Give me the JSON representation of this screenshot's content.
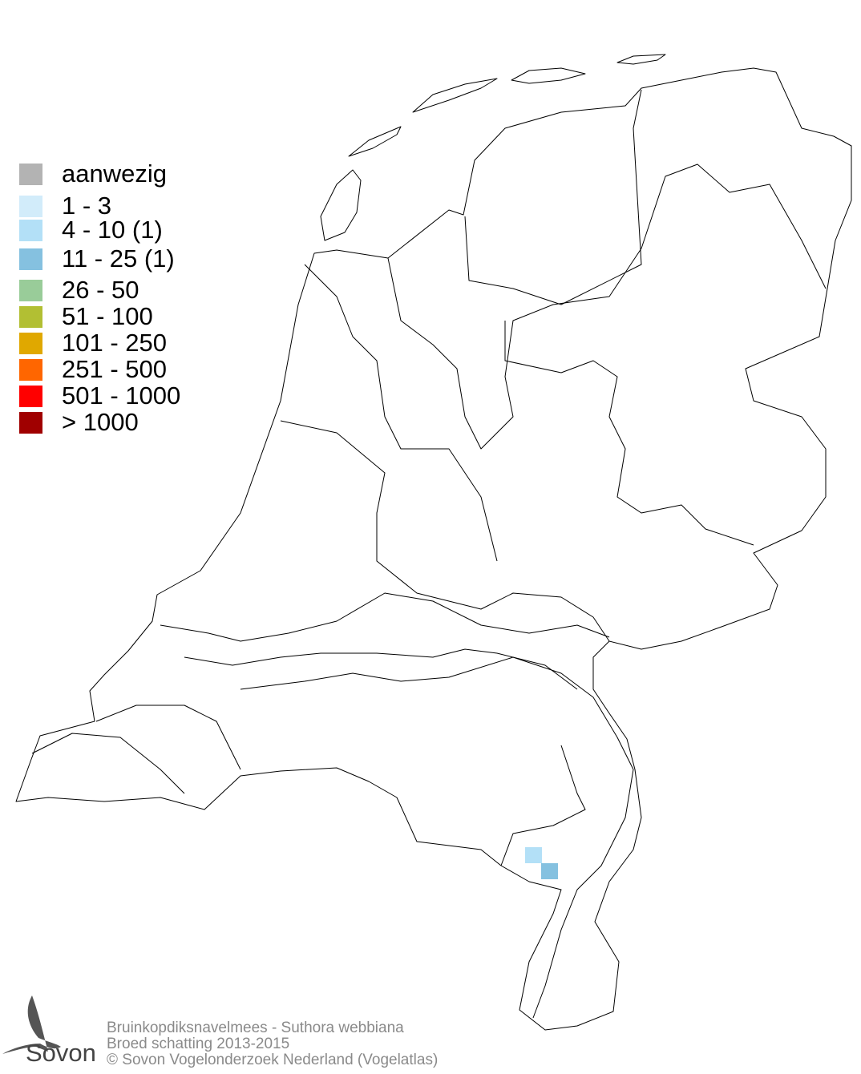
{
  "legend": {
    "items": [
      {
        "label": "aanwezig",
        "color": "#b3b3b3"
      },
      {
        "label": "1 - 3",
        "color": "#d2ecfa"
      },
      {
        "label": "4 - 10 (1)",
        "color": "#b3e0f7"
      },
      {
        "label": "11 - 25 (1)",
        "color": "#85c1e0"
      },
      {
        "label": "26 - 50",
        "color": "#99cc99"
      },
      {
        "label": "51 - 100",
        "color": "#b2bf33"
      },
      {
        "label": "101 - 250",
        "color": "#e0a800"
      },
      {
        "label": "251 - 500",
        "color": "#ff6600"
      },
      {
        "label": "501 - 1000",
        "color": "#ff0000"
      },
      {
        "label": "> 1000",
        "color": "#a00000"
      }
    ]
  },
  "observations": [
    {
      "class": "4 - 10",
      "color": "#b3e0f7"
    },
    {
      "class": "11 - 25",
      "color": "#85c1e0"
    }
  ],
  "footer": {
    "species": "Bruinkopdiksnavelmees - Suthora webbiana",
    "period": "Broed schatting 2013-2015",
    "copyright": "© Sovon Vogelonderzoek Nederland (Vogelatlas)"
  },
  "logo": {
    "text": "Sovon"
  }
}
